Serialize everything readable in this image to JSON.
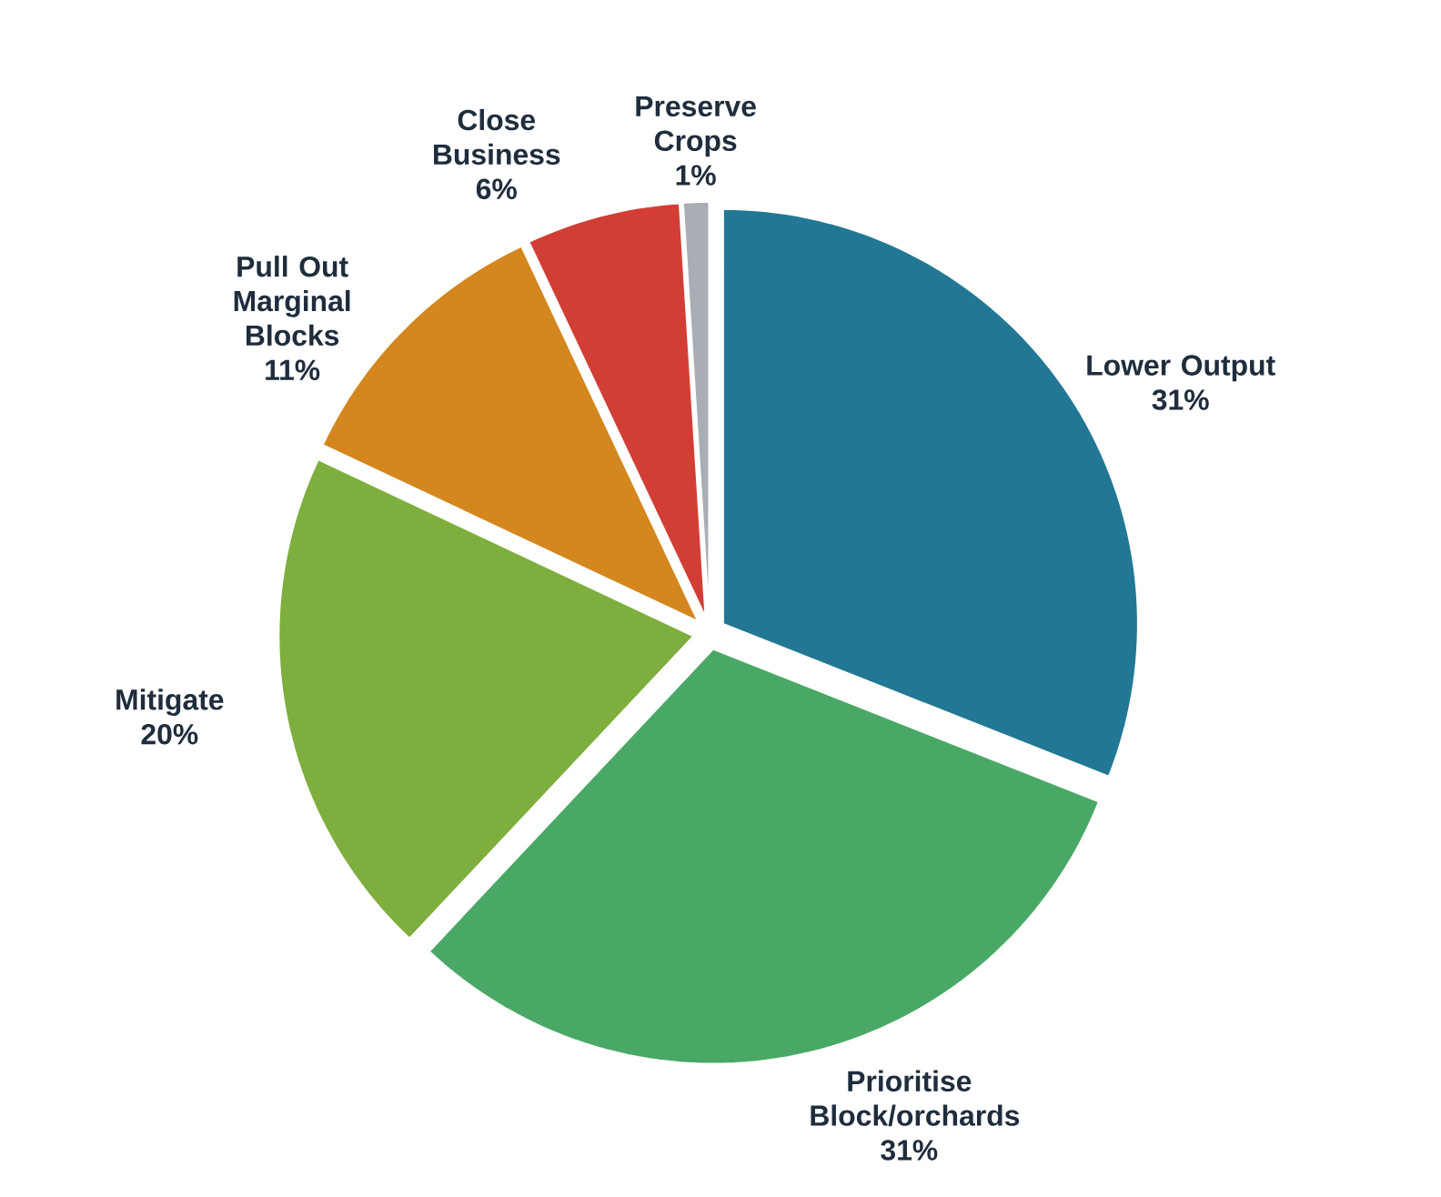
{
  "chart_data": {
    "type": "pie",
    "categories": [
      "Lower Output",
      "Prioritise Block/orchards",
      "Mitigate",
      "Pull Out Marginal Blocks",
      "Close Business",
      "Preserve Crops"
    ],
    "values": [
      31,
      31,
      20,
      11,
      6,
      1
    ],
    "value_labels": [
      "31%",
      "31%",
      "20%",
      "11%",
      "6%",
      "1%"
    ],
    "colors": [
      "#227894",
      "#4aa866",
      "#7eae3e",
      "#d4861f",
      "#d23e36",
      "#a9adb4"
    ]
  }
}
